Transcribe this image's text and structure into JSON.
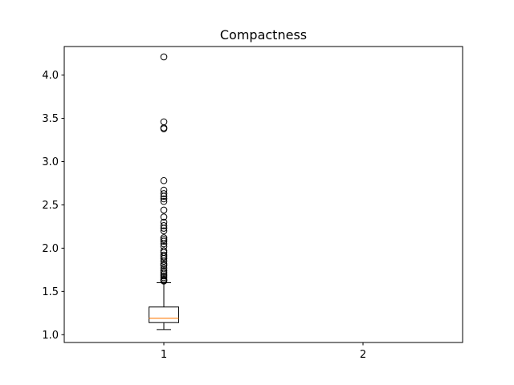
{
  "chart_data": {
    "type": "box",
    "title": "Compactness",
    "xlabel": "",
    "ylabel": "",
    "categories": [
      "1",
      "2"
    ],
    "ylim": [
      0.91,
      4.33
    ],
    "yticks": [
      1.0,
      1.5,
      2.0,
      2.5,
      3.0,
      3.5,
      4.0
    ],
    "ytick_labels": [
      "1.0",
      "1.5",
      "2.0",
      "2.5",
      "3.0",
      "3.5",
      "4.0"
    ],
    "grid": false,
    "boxes": [
      {
        "category": "1",
        "whisker_low": 1.06,
        "q1": 1.14,
        "median": 1.19,
        "q3": 1.32,
        "whisker_high": 1.6,
        "outliers": [
          1.62,
          1.63,
          1.64,
          1.66,
          1.68,
          1.7,
          1.72,
          1.74,
          1.77,
          1.8,
          1.82,
          1.85,
          1.88,
          1.9,
          1.92,
          1.95,
          1.97,
          2.02,
          2.05,
          2.08,
          2.1,
          2.12,
          2.2,
          2.23,
          2.26,
          2.3,
          2.36,
          2.44,
          2.54,
          2.57,
          2.6,
          2.63,
          2.67,
          2.78,
          3.38,
          3.39,
          3.46,
          4.21
        ]
      }
    ],
    "colors": {
      "box": "#000000",
      "median": "#ff7f0e",
      "outlier_edge": "#000000"
    }
  }
}
